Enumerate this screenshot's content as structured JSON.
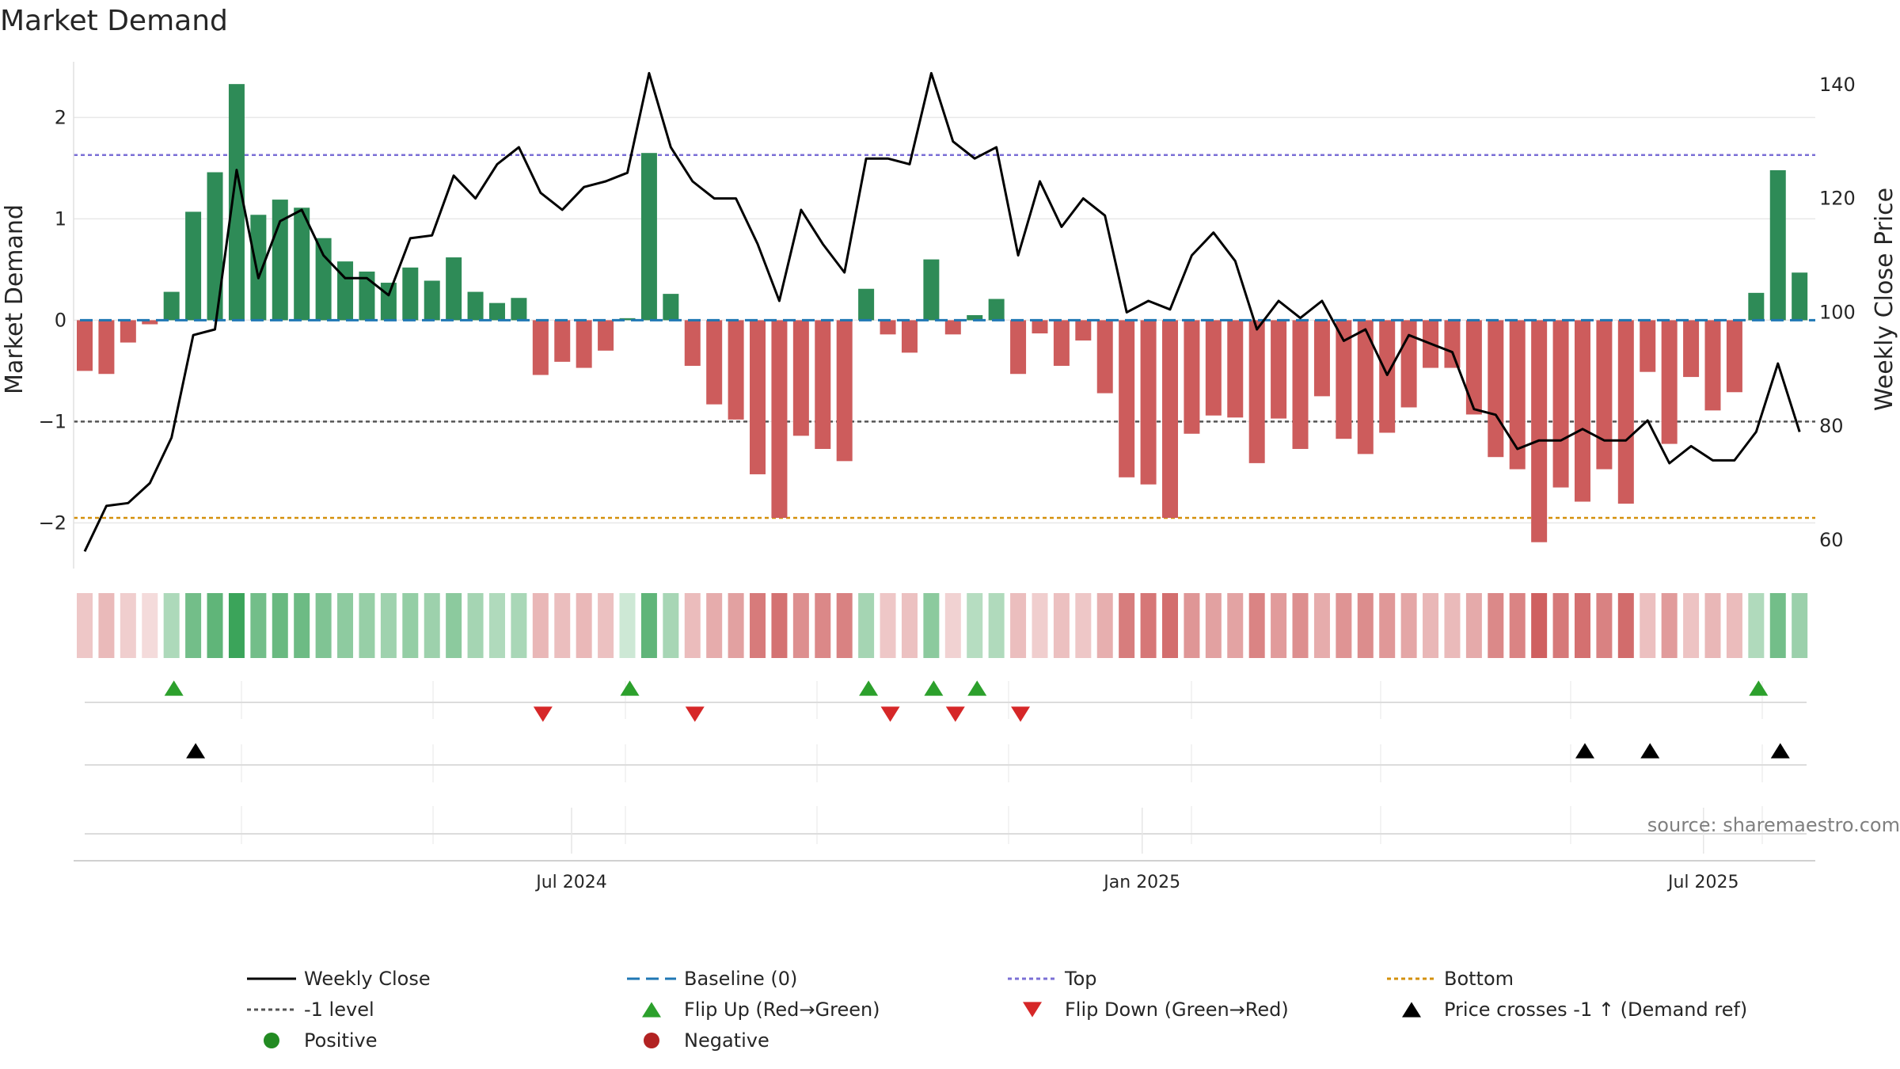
{
  "chart_data": {
    "type": "bar+line",
    "title": "Market Demand",
    "ylabel_left": "Market Demand",
    "ylabel_right": "Weekly Close Price",
    "ylim_left": [
      -2.45,
      2.55
    ],
    "ylim_right": [
      55,
      144
    ],
    "yticks_left": [
      {
        "value": 2,
        "label": "2"
      },
      {
        "value": 1,
        "label": "1"
      },
      {
        "value": 0,
        "label": "0"
      },
      {
        "value": -1,
        "label": "−1"
      },
      {
        "value": -2,
        "label": "−2"
      }
    ],
    "yticks_right": [
      {
        "value": 140,
        "label": "140"
      },
      {
        "value": 120,
        "label": "120"
      },
      {
        "value": 100,
        "label": "100"
      },
      {
        "value": 80,
        "label": "80"
      },
      {
        "value": 60,
        "label": "60"
      }
    ],
    "x_start": "2024-01-26",
    "week_days": 7,
    "xticks": [
      {
        "date": "2024-07-01",
        "label": "Jul 2024"
      },
      {
        "date": "2025-01-01",
        "label": "Jan 2025"
      },
      {
        "date": "2025-07-01",
        "label": "Jul 2025"
      }
    ],
    "reference_lines": {
      "baseline": 0,
      "top": 1.63,
      "minus_one": -1,
      "bottom": -1.95
    },
    "demand": [
      -0.5,
      -0.53,
      -0.22,
      -0.04,
      0.28,
      1.07,
      1.46,
      2.33,
      1.04,
      1.19,
      1.11,
      0.81,
      0.58,
      0.48,
      0.37,
      0.52,
      0.39,
      0.62,
      0.28,
      0.17,
      0.22,
      -0.54,
      -0.41,
      -0.47,
      -0.3,
      0.02,
      1.65,
      0.26,
      -0.45,
      -0.83,
      -0.98,
      -1.52,
      -1.95,
      -1.14,
      -1.27,
      -1.39,
      0.31,
      -0.14,
      -0.32,
      0.6,
      -0.14,
      0.05,
      0.21,
      -0.53,
      -0.13,
      -0.45,
      -0.2,
      -0.72,
      -1.55,
      -1.62,
      -1.95,
      -1.12,
      -0.94,
      -0.96,
      -1.41,
      -0.97,
      -1.27,
      -0.75,
      -1.17,
      -1.32,
      -1.11,
      -0.86,
      -0.47,
      -0.47,
      -0.93,
      -1.35,
      -1.47,
      -2.19,
      -1.65,
      -1.79,
      -1.47,
      -1.81,
      -0.51,
      -1.22,
      -0.56,
      -0.89,
      -0.71,
      0.27,
      1.48,
      0.47
    ],
    "price": [
      58,
      66,
      66.5,
      70,
      78,
      96,
      97,
      125,
      106,
      116,
      118,
      110,
      106,
      106,
      103,
      113,
      113.5,
      124,
      120,
      126,
      129,
      121,
      118,
      122,
      123,
      124.5,
      142,
      129,
      123,
      120,
      120,
      112,
      102,
      118,
      112,
      107,
      127,
      127,
      126,
      142,
      130,
      127,
      129,
      110,
      123,
      115,
      120,
      117,
      100,
      102,
      100.5,
      110,
      114,
      109,
      97,
      102,
      99,
      102,
      95,
      97,
      89,
      96,
      94.5,
      93,
      83,
      82,
      76,
      77.5,
      77.5,
      79.5,
      77.5,
      77.5,
      81,
      73.5,
      76.5,
      74,
      74,
      79,
      91,
      79
    ],
    "heat_strip": [
      0.31,
      0.38,
      0.27,
      0.2,
      0.39,
      0.67,
      0.76,
      0.94,
      0.67,
      0.72,
      0.7,
      0.61,
      0.54,
      0.5,
      0.46,
      0.51,
      0.47,
      0.55,
      0.43,
      0.38,
      0.41,
      0.4,
      0.36,
      0.39,
      0.34,
      0.24,
      0.76,
      0.42,
      0.37,
      0.46,
      0.52,
      0.73,
      0.78,
      0.62,
      0.66,
      0.69,
      0.43,
      0.31,
      0.34,
      0.55,
      0.25,
      0.35,
      0.38,
      0.36,
      0.27,
      0.35,
      0.31,
      0.44,
      0.72,
      0.75,
      0.8,
      0.58,
      0.52,
      0.51,
      0.68,
      0.55,
      0.62,
      0.46,
      0.59,
      0.63,
      0.57,
      0.49,
      0.4,
      0.38,
      0.47,
      0.65,
      0.68,
      0.88,
      0.74,
      0.79,
      0.69,
      0.81,
      0.35,
      0.55,
      0.33,
      0.4,
      0.37,
      0.38,
      0.67,
      0.48
    ],
    "flip_up_weeks": [
      4,
      25,
      36,
      39,
      41,
      77
    ],
    "flip_down_weeks": [
      21,
      28,
      37,
      40,
      43
    ],
    "price_cross_weeks": [
      5,
      69,
      72,
      78
    ],
    "legend": [
      {
        "label": "Weekly Close",
        "style": "solid",
        "color": "#000000"
      },
      {
        "label": "Baseline (0)",
        "style": "dashed",
        "color": "#1f77b4"
      },
      {
        "label": "Top",
        "style": "dotted",
        "color": "#7b6fd6"
      },
      {
        "label": "Bottom",
        "style": "dotted",
        "color": "#d4900b"
      },
      {
        "label": "-1 level",
        "style": "dotted",
        "color": "#555555"
      },
      {
        "label": "Flip Up (Red→Green)",
        "style": "triangle-up",
        "color": "#2ca02c"
      },
      {
        "label": "Flip Down (Green→Red)",
        "style": "triangle-down",
        "color": "#d62728"
      },
      {
        "label": "Price crosses -1 ↑ (Demand ref)",
        "style": "triangle-up",
        "color": "#000000"
      },
      {
        "label": "Positive",
        "style": "circle",
        "color": "#228b22"
      },
      {
        "label": "Negative",
        "style": "circle",
        "color": "#b22222"
      }
    ],
    "source": "source: sharemaestro.com",
    "colors": {
      "positive_bar": "#2e8b57",
      "negative_bar": "#cd5c5c",
      "heat_positive": "#2e9e4f",
      "heat_negative": "#c84a4a",
      "price_line": "#000000",
      "grid": "#e8e8e8"
    }
  }
}
